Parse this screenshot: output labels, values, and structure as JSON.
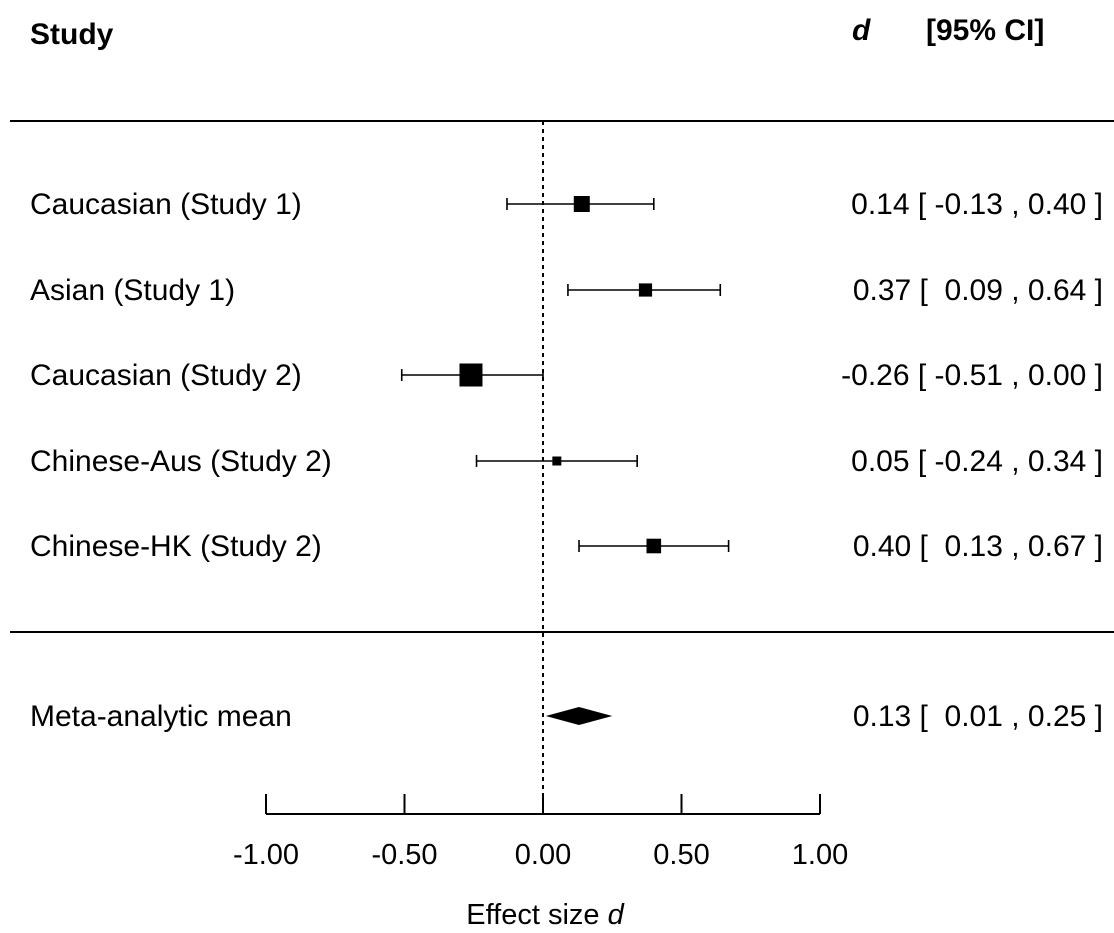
{
  "chart_data": {
    "type": "forest",
    "headers": {
      "study": "Study",
      "effect": "d",
      "ci": "[95% CI]"
    },
    "studies": [
      {
        "label": "Caucasian (Study 1)",
        "d": 0.14,
        "lower": -0.13,
        "upper": 0.4,
        "value_text": "0.14 [ -0.13 , 0.40 ]",
        "weight": 1.0
      },
      {
        "label": "Asian (Study 1)",
        "d": 0.37,
        "lower": 0.09,
        "upper": 0.64,
        "value_text": "0.37 [  0.09 , 0.64 ]",
        "weight": 0.8
      },
      {
        "label": "Caucasian (Study 2)",
        "d": -0.26,
        "lower": -0.51,
        "upper": 0.0,
        "value_text": "-0.26 [ -0.51 , 0.00 ]",
        "weight": 1.5
      },
      {
        "label": "Chinese-Aus (Study 2)",
        "d": 0.05,
        "lower": -0.24,
        "upper": 0.34,
        "value_text": "0.05 [ -0.24 , 0.34 ]",
        "weight": 0.5
      },
      {
        "label": "Chinese-HK (Study 2)",
        "d": 0.4,
        "lower": 0.13,
        "upper": 0.67,
        "value_text": "0.40 [  0.13 , 0.67 ]",
        "weight": 0.9
      }
    ],
    "summary": {
      "label": "Meta-analytic mean",
      "d": 0.13,
      "lower": 0.01,
      "upper": 0.25,
      "value_text": "0.13 [  0.01 , 0.25 ]"
    },
    "xaxis": {
      "ticks": [
        -1.0,
        -0.5,
        0.0,
        0.5,
        1.0
      ],
      "tick_labels": [
        "-1.00",
        "-0.50",
        "0.00",
        "0.50",
        "1.00"
      ],
      "label_prefix": "Effect size ",
      "label_italic": "d",
      "xlim": [
        -1.0,
        1.0
      ]
    },
    "reference_line": 0.0
  }
}
